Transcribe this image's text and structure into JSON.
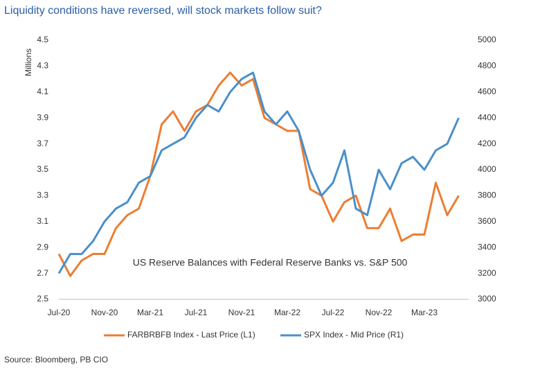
{
  "chart_data": {
    "type": "line",
    "title": "Liquidity conditions have reversed, will stock markets follow suit?",
    "y_label": "Millions",
    "annotation": "US Reserve Balances with Federal Reserve Banks vs. S&P 500",
    "source": "Source: Bloomberg, PB CIO",
    "categories": [
      "Jul-20",
      null,
      null,
      null,
      "Nov-20",
      null,
      null,
      null,
      "Mar-21",
      null,
      null,
      null,
      "Jul-21",
      null,
      null,
      null,
      "Nov-21",
      null,
      null,
      null,
      "Mar-22",
      null,
      null,
      null,
      "Jul-22",
      null,
      null,
      null,
      "Nov-22",
      null,
      null,
      null,
      "Mar-23",
      null,
      null,
      null
    ],
    "series": [
      {
        "name": "FARBRBFB Index - Last Price (L1)",
        "color": "#ed7d31",
        "values": [
          2.85,
          2.68,
          2.8,
          2.85,
          2.85,
          3.05,
          3.15,
          3.2,
          3.45,
          3.85,
          3.95,
          3.8,
          3.95,
          4.0,
          4.15,
          4.25,
          4.15,
          4.2,
          3.9,
          3.85,
          3.8,
          3.8,
          3.35,
          3.3,
          3.1,
          3.25,
          3.3,
          3.05,
          3.05,
          3.2,
          2.95,
          3.0,
          3.0,
          3.4,
          3.15,
          3.3
        ]
      },
      {
        "name": "SPX Index - Mid Price (R1)",
        "color": "#4a8fc9",
        "axis": "y2",
        "values": [
          3200,
          3350,
          3350,
          3450,
          3600,
          3700,
          3750,
          3900,
          3950,
          4150,
          4200,
          4250,
          4400,
          4500,
          4450,
          4600,
          4700,
          4750,
          4450,
          4350,
          4450,
          4300,
          4000,
          3800,
          3900,
          4150,
          3700,
          3650,
          4000,
          3850,
          4050,
          4100,
          4000,
          4150,
          4200,
          4400
        ]
      }
    ],
    "ylim": [
      2.5,
      4.5
    ],
    "yticks": [
      2.5,
      2.7,
      2.9,
      3.1,
      3.3,
      3.5,
      3.7,
      3.9,
      4.1,
      4.3,
      4.5
    ],
    "y2lim": [
      3000,
      5000
    ],
    "y2ticks": [
      3000,
      3200,
      3400,
      3600,
      3800,
      4000,
      4200,
      4400,
      4600,
      4800,
      5000
    ],
    "legend": "bottom"
  }
}
